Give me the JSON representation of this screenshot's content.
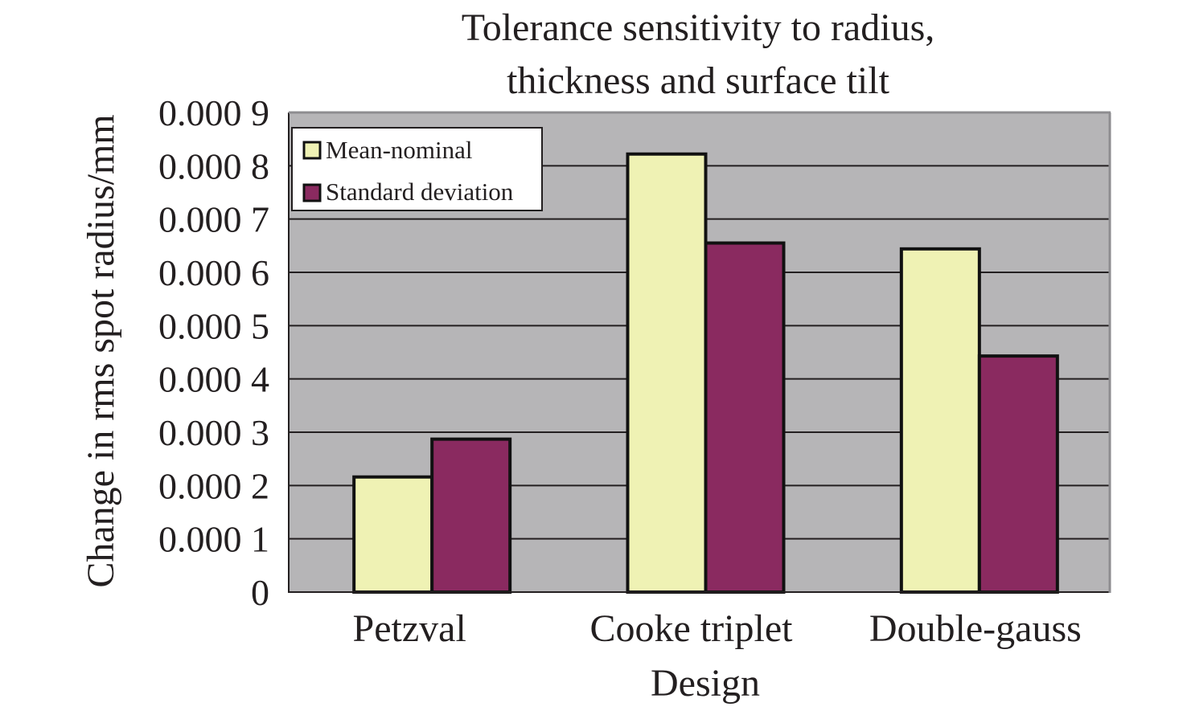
{
  "chart_data": {
    "type": "bar",
    "title": "Tolerance sensitivity to radius, thickness and surface tilt",
    "title_lines": [
      "Tolerance sensitivity to radius,",
      "thickness and surface tilt"
    ],
    "xlabel": "Design",
    "ylabel": "Change in rms spot radius/mm",
    "categories": [
      "Petzval",
      "Cooke triplet",
      "Double-gauss"
    ],
    "series": [
      {
        "name": "Mean-nominal",
        "color": "#eff2b4",
        "values": [
          0.000216,
          0.000822,
          0.000644
        ]
      },
      {
        "name": "Standard deviation",
        "color": "#8a2a60",
        "values": [
          0.000287,
          0.000655,
          0.000443
        ]
      }
    ],
    "ylim": [
      0,
      0.0009
    ],
    "yticks": [
      0,
      0.0001,
      0.0002,
      0.0003,
      0.0004,
      0.0005,
      0.0006,
      0.0007,
      0.0008,
      0.0009
    ],
    "ytick_labels": [
      "0",
      "0.000 1",
      "0.000 2",
      "0.000 3",
      "0.000 4",
      "0.000 5",
      "0.000 6",
      "0.000 7",
      "0.000 8",
      "0.000 9"
    ],
    "grid": true,
    "legend_position": "top-left",
    "plot_background": "#b6b5b7"
  }
}
